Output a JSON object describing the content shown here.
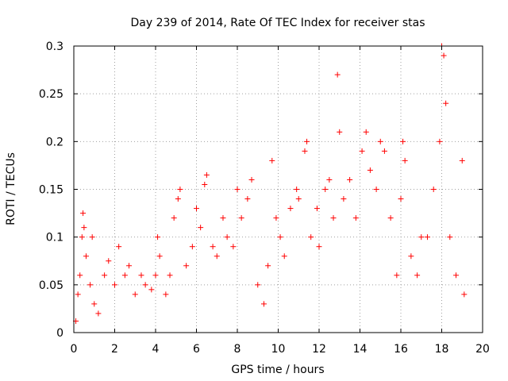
{
  "chart_data": {
    "type": "scatter",
    "title": "Day 239 of 2014, Rate Of TEC Index for receiver stas",
    "xlabel": "GPS time / hours",
    "ylabel": "ROTI / TECUs",
    "xlim": [
      0,
      20
    ],
    "ylim": [
      0,
      0.3
    ],
    "x_ticks": [
      0,
      2,
      4,
      6,
      8,
      10,
      12,
      14,
      16,
      18,
      20
    ],
    "x_tick_labels": [
      "0",
      "2",
      "4",
      "6",
      "8",
      "10",
      "12",
      "14",
      "16",
      "18",
      "20"
    ],
    "y_ticks": [
      0,
      0.05,
      0.1,
      0.15,
      0.2,
      0.25,
      0.3
    ],
    "y_tick_labels": [
      "0",
      "0.05",
      "0.1",
      "0.15",
      "0.2",
      "0.25",
      "0.3"
    ],
    "grid": true,
    "marker": "+",
    "color": "#ff0000",
    "series": [
      {
        "name": "ROTI",
        "points": [
          [
            0.1,
            0.012
          ],
          [
            0.2,
            0.04
          ],
          [
            0.3,
            0.06
          ],
          [
            0.4,
            0.1
          ],
          [
            0.45,
            0.125
          ],
          [
            0.5,
            0.11
          ],
          [
            0.6,
            0.08
          ],
          [
            0.8,
            0.05
          ],
          [
            0.9,
            0.1
          ],
          [
            1.0,
            0.03
          ],
          [
            1.2,
            0.02
          ],
          [
            1.5,
            0.06
          ],
          [
            1.7,
            0.075
          ],
          [
            2.0,
            0.05
          ],
          [
            2.2,
            0.09
          ],
          [
            2.5,
            0.06
          ],
          [
            2.7,
            0.07
          ],
          [
            3.0,
            0.04
          ],
          [
            3.3,
            0.06
          ],
          [
            3.5,
            0.05
          ],
          [
            3.8,
            0.045
          ],
          [
            4.0,
            0.06
          ],
          [
            4.1,
            0.1
          ],
          [
            4.2,
            0.08
          ],
          [
            4.5,
            0.04
          ],
          [
            4.7,
            0.06
          ],
          [
            4.9,
            0.12
          ],
          [
            5.1,
            0.14
          ],
          [
            5.2,
            0.15
          ],
          [
            5.5,
            0.07
          ],
          [
            5.8,
            0.09
          ],
          [
            6.0,
            0.13
          ],
          [
            6.2,
            0.11
          ],
          [
            6.4,
            0.155
          ],
          [
            6.5,
            0.165
          ],
          [
            6.8,
            0.09
          ],
          [
            7.0,
            0.08
          ],
          [
            7.3,
            0.12
          ],
          [
            7.5,
            0.1
          ],
          [
            7.8,
            0.09
          ],
          [
            8.0,
            0.15
          ],
          [
            8.2,
            0.12
          ],
          [
            8.5,
            0.14
          ],
          [
            8.7,
            0.16
          ],
          [
            9.0,
            0.05
          ],
          [
            9.3,
            0.03
          ],
          [
            9.5,
            0.07
          ],
          [
            9.7,
            0.18
          ],
          [
            9.9,
            0.12
          ],
          [
            10.1,
            0.1
          ],
          [
            10.3,
            0.08
          ],
          [
            10.6,
            0.13
          ],
          [
            10.9,
            0.15
          ],
          [
            11.0,
            0.14
          ],
          [
            11.3,
            0.19
          ],
          [
            11.4,
            0.2
          ],
          [
            11.6,
            0.1
          ],
          [
            11.9,
            0.13
          ],
          [
            12.0,
            0.09
          ],
          [
            12.3,
            0.15
          ],
          [
            12.5,
            0.16
          ],
          [
            12.7,
            0.12
          ],
          [
            12.9,
            0.27
          ],
          [
            13.0,
            0.21
          ],
          [
            13.2,
            0.14
          ],
          [
            13.5,
            0.16
          ],
          [
            13.8,
            0.12
          ],
          [
            14.1,
            0.19
          ],
          [
            14.3,
            0.21
          ],
          [
            14.5,
            0.17
          ],
          [
            14.8,
            0.15
          ],
          [
            15.0,
            0.2
          ],
          [
            15.2,
            0.19
          ],
          [
            15.5,
            0.12
          ],
          [
            15.8,
            0.06
          ],
          [
            16.0,
            0.14
          ],
          [
            16.1,
            0.2
          ],
          [
            16.2,
            0.18
          ],
          [
            16.5,
            0.08
          ],
          [
            16.8,
            0.06
          ],
          [
            17.0,
            0.1
          ],
          [
            17.3,
            0.1
          ],
          [
            17.6,
            0.15
          ],
          [
            17.9,
            0.2
          ],
          [
            18.0,
            0.3
          ],
          [
            18.1,
            0.29
          ],
          [
            18.2,
            0.24
          ],
          [
            18.4,
            0.1
          ],
          [
            18.7,
            0.06
          ],
          [
            19.0,
            0.18
          ],
          [
            19.1,
            0.04
          ]
        ]
      }
    ]
  }
}
